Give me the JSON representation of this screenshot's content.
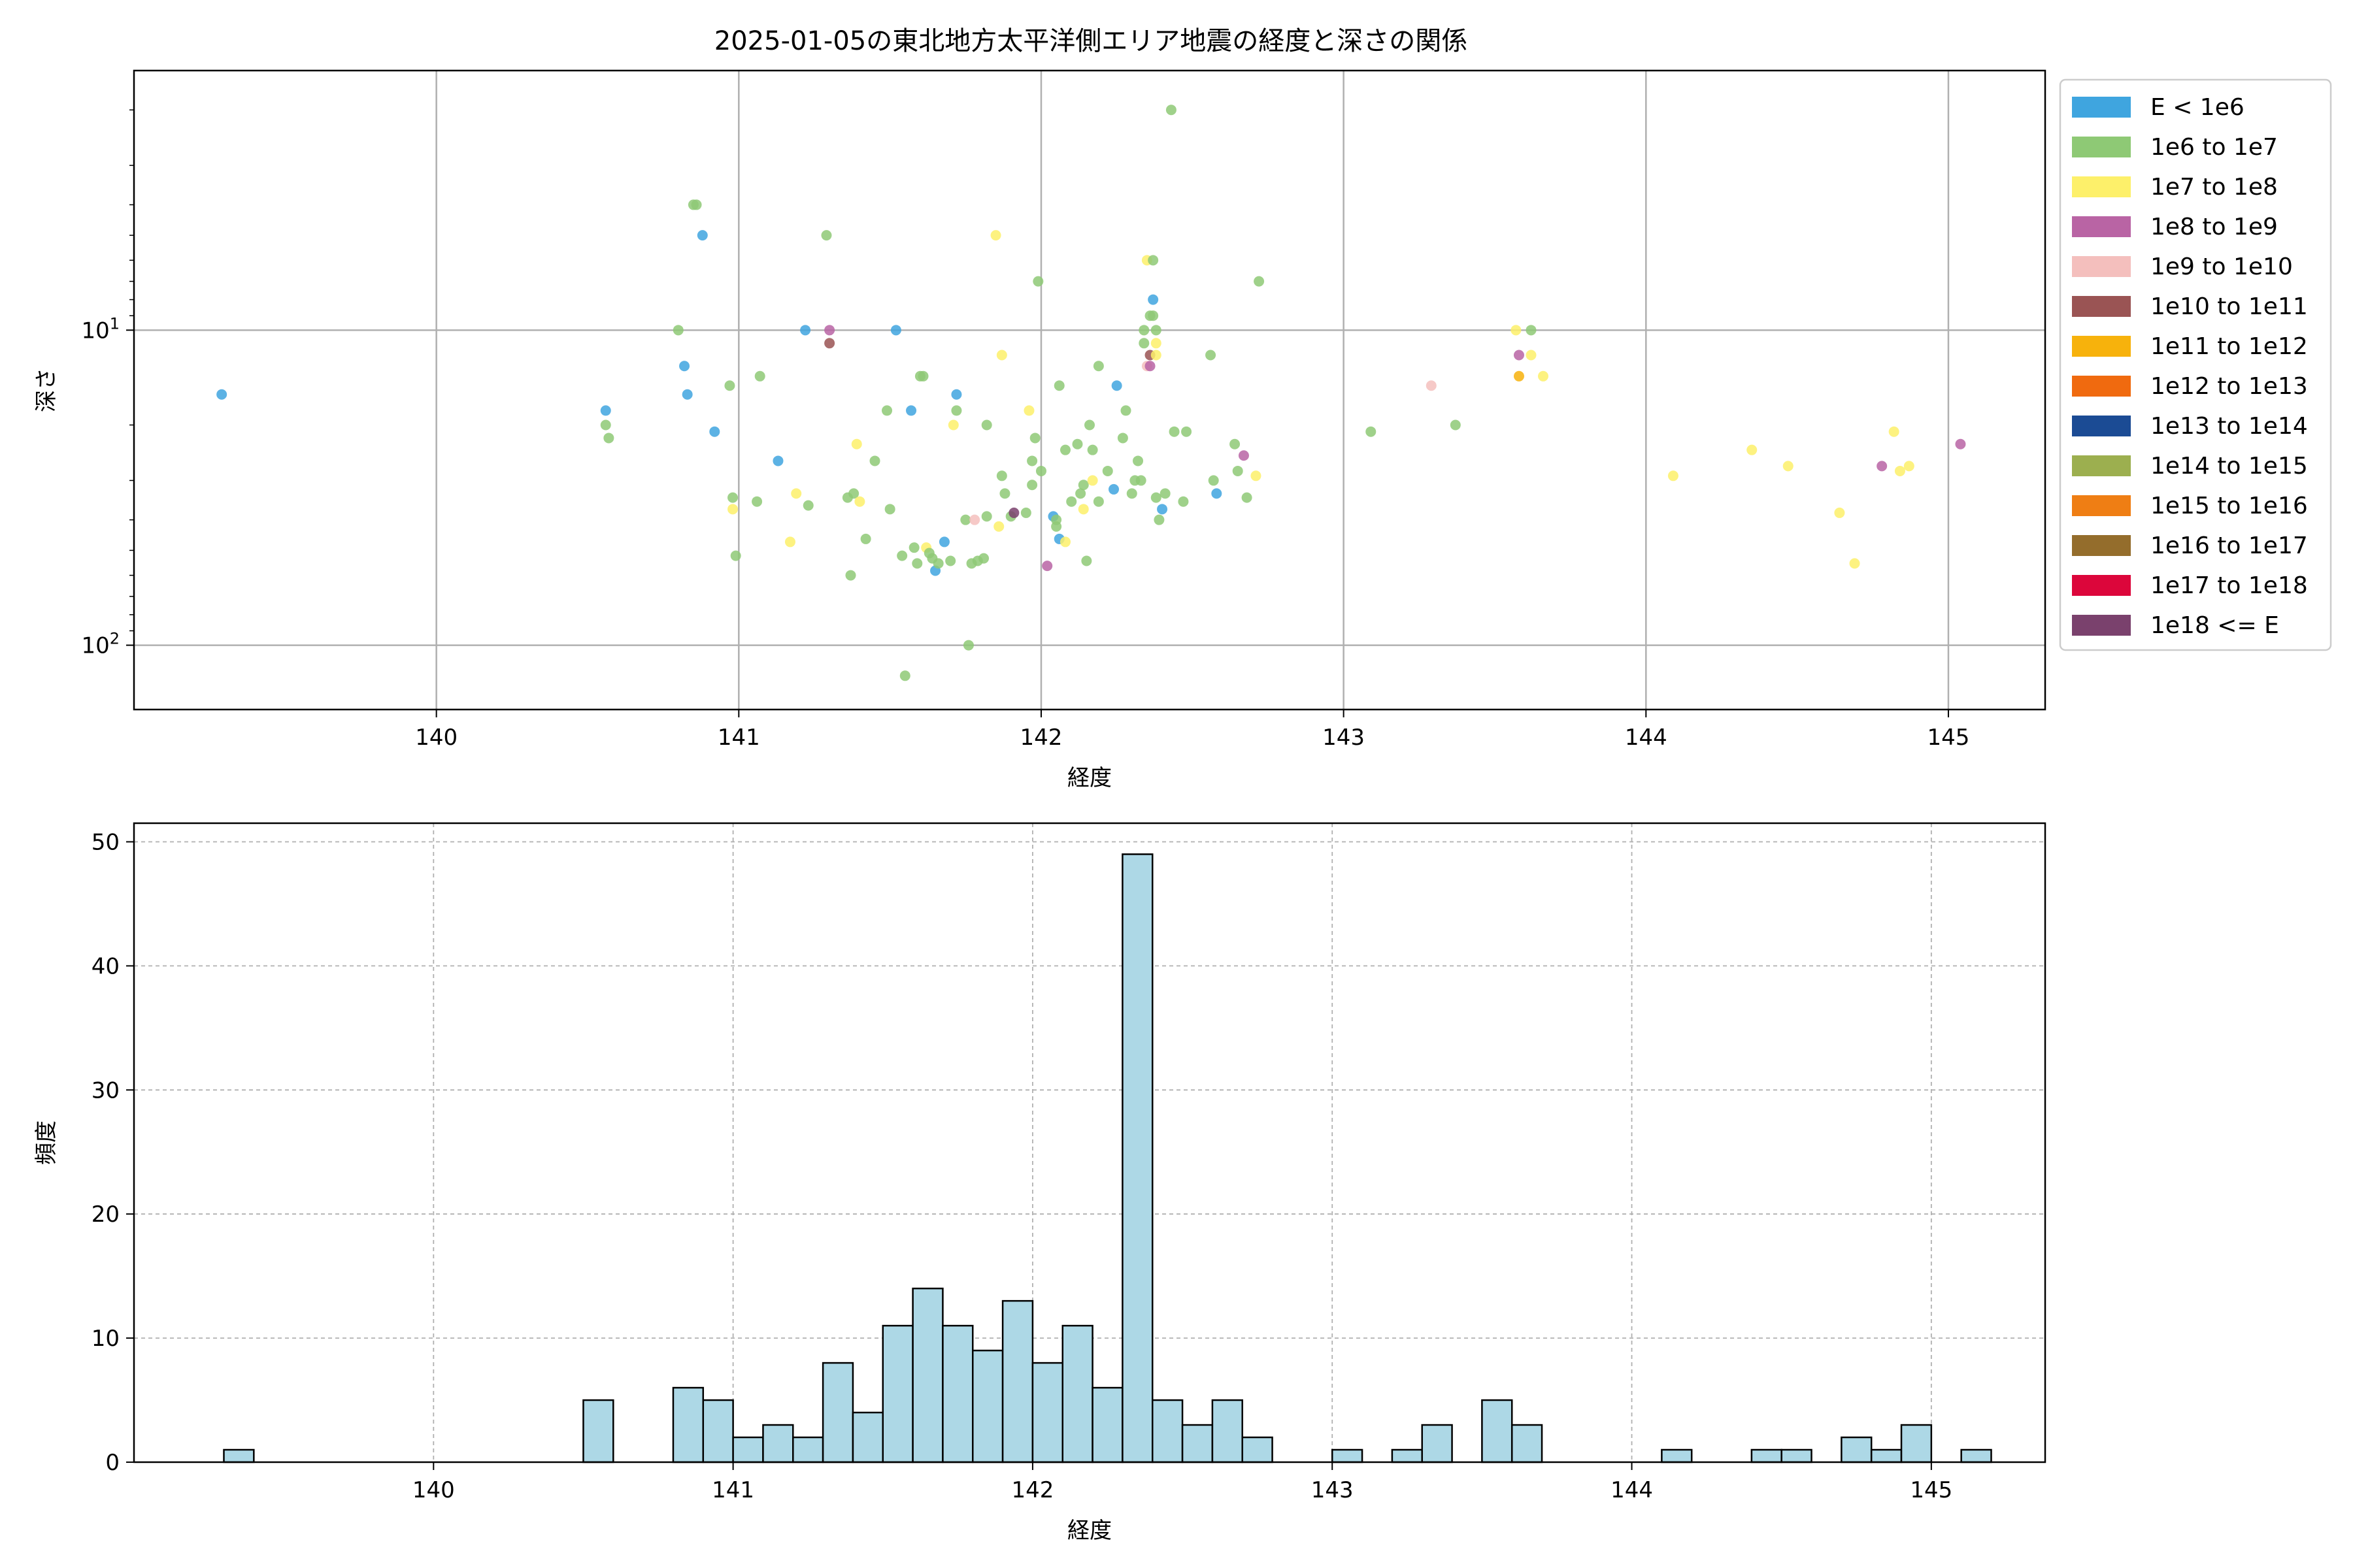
{
  "title": "2025-01-05の東北地方太平洋側エリア地震の経度と深さの関係",
  "legend": {
    "placement": "outside upper right",
    "entries": [
      {
        "label": "E < 1e6",
        "color": "#3fa5df"
      },
      {
        "label": "1e6 to 1e7",
        "color": "#8ec975"
      },
      {
        "label": "1e7 to 1e8",
        "color": "#fdf06a"
      },
      {
        "label": "1e8 to 1e9",
        "color": "#b964a4"
      },
      {
        "label": "1e9 to 1e10",
        "color": "#f4bfbd"
      },
      {
        "label": "1e10 to 1e11",
        "color": "#9a5454"
      },
      {
        "label": "1e11 to 1e12",
        "color": "#f7b20c"
      },
      {
        "label": "1e12 to 1e13",
        "color": "#f06a0f"
      },
      {
        "label": "1e13 to 1e14",
        "color": "#1b4b94"
      },
      {
        "label": "1e14 to 1e15",
        "color": "#9caf4f"
      },
      {
        "label": "1e15 to 1e16",
        "color": "#ef7e14"
      },
      {
        "label": "1e16 to 1e17",
        "color": "#946d2c"
      },
      {
        "label": "1e17 to 1e18",
        "color": "#dc063b"
      },
      {
        "label": "1e18 <= E",
        "color": "#7a416d"
      }
    ]
  },
  "chart_data": [
    {
      "type": "scatter",
      "xlabel": "経度",
      "ylabel": "深さ",
      "xlim": [
        139.0,
        145.32
      ],
      "ylim": [
        160,
        1.5
      ],
      "yscale": "log",
      "y_inverted": true,
      "xticks": [
        140,
        141,
        142,
        143,
        144,
        145
      ],
      "yticks": [
        {
          "value": 10,
          "base": "10",
          "exp": "1"
        },
        {
          "value": 100,
          "base": "10",
          "exp": "2"
        }
      ],
      "grid": true,
      "points": [
        {
          "x": 139.29,
          "y": 16,
          "c": 0
        },
        {
          "x": 140.56,
          "y": 18,
          "c": 0
        },
        {
          "x": 140.56,
          "y": 20,
          "c": 1
        },
        {
          "x": 140.57,
          "y": 22,
          "c": 1
        },
        {
          "x": 140.8,
          "y": 10,
          "c": 1
        },
        {
          "x": 140.82,
          "y": 13,
          "c": 0
        },
        {
          "x": 140.83,
          "y": 16,
          "c": 0
        },
        {
          "x": 140.85,
          "y": 4,
          "c": 1
        },
        {
          "x": 140.86,
          "y": 4,
          "c": 1
        },
        {
          "x": 140.88,
          "y": 5,
          "c": 0
        },
        {
          "x": 140.92,
          "y": 21,
          "c": 0
        },
        {
          "x": 140.97,
          "y": 15,
          "c": 1
        },
        {
          "x": 140.98,
          "y": 34,
          "c": 1
        },
        {
          "x": 140.98,
          "y": 37,
          "c": 2
        },
        {
          "x": 140.99,
          "y": 52,
          "c": 1
        },
        {
          "x": 141.06,
          "y": 35,
          "c": 1
        },
        {
          "x": 141.07,
          "y": 14,
          "c": 1
        },
        {
          "x": 141.13,
          "y": 26,
          "c": 0
        },
        {
          "x": 141.17,
          "y": 47,
          "c": 2
        },
        {
          "x": 141.19,
          "y": 33,
          "c": 2
        },
        {
          "x": 141.22,
          "y": 10,
          "c": 0
        },
        {
          "x": 141.23,
          "y": 36,
          "c": 1
        },
        {
          "x": 141.29,
          "y": 5,
          "c": 1
        },
        {
          "x": 141.3,
          "y": 10,
          "c": 3
        },
        {
          "x": 141.3,
          "y": 11,
          "c": 5
        },
        {
          "x": 141.36,
          "y": 34,
          "c": 1
        },
        {
          "x": 141.37,
          "y": 60,
          "c": 1
        },
        {
          "x": 141.38,
          "y": 33,
          "c": 1
        },
        {
          "x": 141.39,
          "y": 23,
          "c": 2
        },
        {
          "x": 141.4,
          "y": 35,
          "c": 2
        },
        {
          "x": 141.42,
          "y": 46,
          "c": 1
        },
        {
          "x": 141.45,
          "y": 26,
          "c": 1
        },
        {
          "x": 141.49,
          "y": 18,
          "c": 1
        },
        {
          "x": 141.5,
          "y": 37,
          "c": 1
        },
        {
          "x": 141.52,
          "y": 10,
          "c": 0
        },
        {
          "x": 141.54,
          "y": 52,
          "c": 1
        },
        {
          "x": 141.55,
          "y": 125,
          "c": 1
        },
        {
          "x": 141.57,
          "y": 18,
          "c": 0
        },
        {
          "x": 141.58,
          "y": 49,
          "c": 1
        },
        {
          "x": 141.59,
          "y": 55,
          "c": 1
        },
        {
          "x": 141.6,
          "y": 14,
          "c": 1
        },
        {
          "x": 141.61,
          "y": 14,
          "c": 1
        },
        {
          "x": 141.62,
          "y": 49,
          "c": 2
        },
        {
          "x": 141.63,
          "y": 51,
          "c": 1
        },
        {
          "x": 141.64,
          "y": 53,
          "c": 1
        },
        {
          "x": 141.65,
          "y": 58,
          "c": 0
        },
        {
          "x": 141.66,
          "y": 55,
          "c": 1
        },
        {
          "x": 141.68,
          "y": 47,
          "c": 0
        },
        {
          "x": 141.7,
          "y": 54,
          "c": 1
        },
        {
          "x": 141.71,
          "y": 20,
          "c": 2
        },
        {
          "x": 141.72,
          "y": 16,
          "c": 0
        },
        {
          "x": 141.72,
          "y": 18,
          "c": 1
        },
        {
          "x": 141.75,
          "y": 40,
          "c": 1
        },
        {
          "x": 141.76,
          "y": 100,
          "c": 1
        },
        {
          "x": 141.77,
          "y": 55,
          "c": 1
        },
        {
          "x": 141.78,
          "y": 40,
          "c": 4
        },
        {
          "x": 141.79,
          "y": 54,
          "c": 1
        },
        {
          "x": 141.81,
          "y": 53,
          "c": 1
        },
        {
          "x": 141.82,
          "y": 20,
          "c": 1
        },
        {
          "x": 141.82,
          "y": 39,
          "c": 1
        },
        {
          "x": 141.85,
          "y": 5,
          "c": 2
        },
        {
          "x": 141.86,
          "y": 42,
          "c": 2
        },
        {
          "x": 141.87,
          "y": 12,
          "c": 2
        },
        {
          "x": 141.87,
          "y": 29,
          "c": 1
        },
        {
          "x": 141.88,
          "y": 33,
          "c": 1
        },
        {
          "x": 141.9,
          "y": 39,
          "c": 1
        },
        {
          "x": 141.91,
          "y": 38,
          "c": 13
        },
        {
          "x": 141.95,
          "y": 38,
          "c": 1
        },
        {
          "x": 141.96,
          "y": 18,
          "c": 2
        },
        {
          "x": 141.97,
          "y": 26,
          "c": 1
        },
        {
          "x": 141.97,
          "y": 31,
          "c": 1
        },
        {
          "x": 141.98,
          "y": 22,
          "c": 1
        },
        {
          "x": 141.99,
          "y": 7,
          "c": 1
        },
        {
          "x": 142.0,
          "y": 28,
          "c": 1
        },
        {
          "x": 142.02,
          "y": 56,
          "c": 3
        },
        {
          "x": 142.04,
          "y": 39,
          "c": 0
        },
        {
          "x": 142.05,
          "y": 40,
          "c": 1
        },
        {
          "x": 142.05,
          "y": 42,
          "c": 1
        },
        {
          "x": 142.06,
          "y": 46,
          "c": 0
        },
        {
          "x": 142.06,
          "y": 15,
          "c": 1
        },
        {
          "x": 142.08,
          "y": 47,
          "c": 2
        },
        {
          "x": 142.08,
          "y": 24,
          "c": 1
        },
        {
          "x": 142.1,
          "y": 35,
          "c": 1
        },
        {
          "x": 142.12,
          "y": 23,
          "c": 1
        },
        {
          "x": 142.13,
          "y": 33,
          "c": 1
        },
        {
          "x": 142.14,
          "y": 37,
          "c": 2
        },
        {
          "x": 142.14,
          "y": 31,
          "c": 1
        },
        {
          "x": 142.15,
          "y": 54,
          "c": 1
        },
        {
          "x": 142.16,
          "y": 20,
          "c": 1
        },
        {
          "x": 142.17,
          "y": 24,
          "c": 1
        },
        {
          "x": 142.17,
          "y": 30,
          "c": 2
        },
        {
          "x": 142.19,
          "y": 35,
          "c": 1
        },
        {
          "x": 142.19,
          "y": 13,
          "c": 1
        },
        {
          "x": 142.22,
          "y": 28,
          "c": 1
        },
        {
          "x": 142.24,
          "y": 32,
          "c": 0
        },
        {
          "x": 142.25,
          "y": 15,
          "c": 0
        },
        {
          "x": 142.27,
          "y": 22,
          "c": 1
        },
        {
          "x": 142.28,
          "y": 18,
          "c": 1
        },
        {
          "x": 142.3,
          "y": 33,
          "c": 1
        },
        {
          "x": 142.31,
          "y": 30,
          "c": 1
        },
        {
          "x": 142.32,
          "y": 26,
          "c": 1
        },
        {
          "x": 142.33,
          "y": 30,
          "c": 1
        },
        {
          "x": 142.34,
          "y": 11,
          "c": 1
        },
        {
          "x": 142.34,
          "y": 10,
          "c": 1
        },
        {
          "x": 142.35,
          "y": 6,
          "c": 2
        },
        {
          "x": 142.35,
          "y": 13,
          "c": 4
        },
        {
          "x": 142.36,
          "y": 13,
          "c": 3
        },
        {
          "x": 142.36,
          "y": 12,
          "c": 5
        },
        {
          "x": 142.36,
          "y": 9,
          "c": 1
        },
        {
          "x": 142.37,
          "y": 6,
          "c": 1
        },
        {
          "x": 142.37,
          "y": 8,
          "c": 0
        },
        {
          "x": 142.37,
          "y": 9,
          "c": 1
        },
        {
          "x": 142.38,
          "y": 10,
          "c": 1
        },
        {
          "x": 142.38,
          "y": 11,
          "c": 2
        },
        {
          "x": 142.38,
          "y": 12,
          "c": 2
        },
        {
          "x": 142.38,
          "y": 34,
          "c": 1
        },
        {
          "x": 142.39,
          "y": 40,
          "c": 1
        },
        {
          "x": 142.4,
          "y": 37,
          "c": 0
        },
        {
          "x": 142.41,
          "y": 33,
          "c": 1
        },
        {
          "x": 142.44,
          "y": 21,
          "c": 1
        },
        {
          "x": 142.43,
          "y": 2,
          "c": 1
        },
        {
          "x": 142.47,
          "y": 35,
          "c": 1
        },
        {
          "x": 142.48,
          "y": 21,
          "c": 1
        },
        {
          "x": 142.56,
          "y": 12,
          "c": 1
        },
        {
          "x": 142.57,
          "y": 30,
          "c": 1
        },
        {
          "x": 142.58,
          "y": 33,
          "c": 0
        },
        {
          "x": 142.64,
          "y": 23,
          "c": 1
        },
        {
          "x": 142.65,
          "y": 28,
          "c": 1
        },
        {
          "x": 142.67,
          "y": 25,
          "c": 3
        },
        {
          "x": 142.68,
          "y": 34,
          "c": 1
        },
        {
          "x": 142.71,
          "y": 29,
          "c": 2
        },
        {
          "x": 142.72,
          "y": 7,
          "c": 1
        },
        {
          "x": 143.09,
          "y": 21,
          "c": 1
        },
        {
          "x": 143.29,
          "y": 15,
          "c": 4
        },
        {
          "x": 143.37,
          "y": 20,
          "c": 1
        },
        {
          "x": 143.57,
          "y": 10,
          "c": 2
        },
        {
          "x": 143.58,
          "y": 12,
          "c": 3
        },
        {
          "x": 143.58,
          "y": 14,
          "c": 6
        },
        {
          "x": 143.62,
          "y": 10,
          "c": 1
        },
        {
          "x": 143.62,
          "y": 12,
          "c": 2
        },
        {
          "x": 143.66,
          "y": 14,
          "c": 2
        },
        {
          "x": 144.09,
          "y": 29,
          "c": 2
        },
        {
          "x": 144.35,
          "y": 24,
          "c": 2
        },
        {
          "x": 144.47,
          "y": 27,
          "c": 2
        },
        {
          "x": 144.64,
          "y": 38,
          "c": 2
        },
        {
          "x": 144.69,
          "y": 55,
          "c": 2
        },
        {
          "x": 144.78,
          "y": 27,
          "c": 3
        },
        {
          "x": 144.82,
          "y": 21,
          "c": 2
        },
        {
          "x": 144.84,
          "y": 28,
          "c": 2
        },
        {
          "x": 144.87,
          "y": 27,
          "c": 2
        },
        {
          "x": 145.04,
          "y": 23,
          "c": 3
        }
      ]
    },
    {
      "type": "histogram",
      "xlabel": "経度",
      "ylabel": "頻度",
      "xlim": [
        139.0,
        145.38
      ],
      "ylim": [
        0,
        51.5
      ],
      "xticks": [
        140,
        141,
        142,
        143,
        144,
        145
      ],
      "yticks": [
        0,
        10,
        20,
        30,
        40,
        50
      ],
      "grid": true,
      "bar_color": "#add8e6",
      "edge_color": "#000000",
      "bin_start": 139.3,
      "bin_width": 0.1,
      "counts": [
        1,
        0,
        0,
        0,
        0,
        0,
        0,
        0,
        0,
        0,
        0,
        0,
        5,
        0,
        0,
        6,
        5,
        2,
        3,
        2,
        8,
        4,
        11,
        14,
        11,
        9,
        13,
        8,
        11,
        6,
        49,
        5,
        3,
        5,
        2,
        0,
        0,
        1,
        0,
        1,
        3,
        0,
        5,
        3,
        0,
        0,
        0,
        0,
        1,
        0,
        0,
        1,
        1,
        0,
        2,
        1,
        3,
        0,
        1
      ]
    }
  ]
}
